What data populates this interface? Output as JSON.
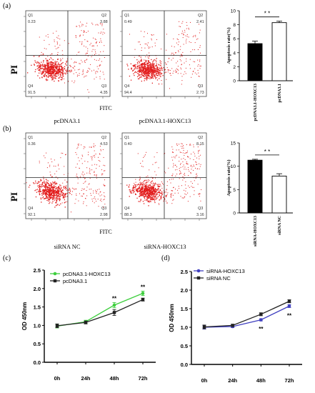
{
  "panel_labels": {
    "a": "(a)",
    "b": "(b)",
    "c": "(c)",
    "d": "(d)"
  },
  "flow": {
    "y_label": "PI",
    "x_label_a": "FITC",
    "x_label_b": "FITC",
    "plots": [
      {
        "title": "pcDNA3.1",
        "q1": "0.23",
        "q2": "3.88",
        "q3": "4.35",
        "q4": "91.5",
        "q1_label": "Q1",
        "q2_label": "Q2",
        "q3_label": "Q3",
        "q4_label": "Q4"
      },
      {
        "title": "pcDNA3.1-HOXC13",
        "q1": "0.49",
        "q2": "2.41",
        "q3": "2.73",
        "q4": "94.4",
        "q1_label": "Q1",
        "q2_label": "Q2",
        "q3_label": "Q3",
        "q4_label": "Q4"
      },
      {
        "title": "siRNA NC",
        "q1": "0.36",
        "q2": "4.53",
        "q3": "2.98",
        "q4": "92.1",
        "q1_label": "Q1",
        "q2_label": "Q2",
        "q3_label": "Q3",
        "q4_label": "Q4"
      },
      {
        "title": "siRNA-HOXC13",
        "q1": "0.40",
        "q2": "8.15",
        "q3": "3.16",
        "q4": "88.3",
        "q1_label": "Q1",
        "q2_label": "Q2",
        "q3_label": "Q3",
        "q4_label": "Q4"
      }
    ]
  },
  "chart_data": [
    {
      "type": "bar",
      "id": "apoptosis-a",
      "title": "",
      "ylabel": "Apoptosis rate(%)",
      "ylim": [
        0,
        10
      ],
      "yticks": [
        "0",
        "2",
        "4",
        "6",
        "8",
        "10"
      ],
      "categories": [
        "pcDNA3.1-HOXC13",
        "pcDNA3.1"
      ],
      "values": [
        5.3,
        8.3
      ],
      "errors": [
        0.35,
        0.2
      ],
      "fills": [
        "#000000",
        "#ffffff"
      ],
      "significance": "* *"
    },
    {
      "type": "bar",
      "id": "apoptosis-b",
      "title": "",
      "ylabel": "Apoptosis rate(%)",
      "ylim": [
        0,
        15
      ],
      "yticks": [
        "0",
        "5",
        "10",
        "15"
      ],
      "categories": [
        "siRNA-HOXC13",
        "siRNA NC"
      ],
      "values": [
        11.3,
        7.9
      ],
      "errors": [
        0.2,
        0.5
      ],
      "fills": [
        "#000000",
        "#ffffff"
      ],
      "significance": "* *"
    },
    {
      "type": "line",
      "id": "od-c",
      "title": "",
      "ylabel": "OD 450nm",
      "xlabel": "",
      "ylim": [
        0.0,
        2.5
      ],
      "yticks": [
        "0.0",
        "0.5",
        "1.0",
        "1.5",
        "2.0",
        "2.5"
      ],
      "categories": [
        "0h",
        "24h",
        "48h",
        "72h"
      ],
      "series": [
        {
          "name": "pcDNA3.1-HOXC13",
          "color": "#3ecf3e",
          "marker": "circle",
          "values": [
            0.98,
            1.1,
            1.55,
            1.87
          ],
          "errors": [
            0.05,
            0.04,
            0.07,
            0.06
          ]
        },
        {
          "name": "pcDNA3.1",
          "color": "#222222",
          "marker": "square",
          "values": [
            0.99,
            1.08,
            1.35,
            1.7
          ],
          "errors": [
            0.05,
            0.04,
            0.08,
            0.04
          ]
        }
      ],
      "annotations": [
        {
          "x": "48h",
          "text": "**"
        },
        {
          "x": "72h",
          "text": "**"
        }
      ]
    },
    {
      "type": "line",
      "id": "od-d",
      "title": "",
      "ylabel": "OD 450nm",
      "xlabel": "",
      "ylim": [
        0.0,
        2.5
      ],
      "yticks": [
        "0.0",
        "0.5",
        "1.0",
        "1.5",
        "2.0",
        "2.5"
      ],
      "categories": [
        "0h",
        "24h",
        "48h",
        "72h"
      ],
      "series": [
        {
          "name": "siRNA-HOXC13",
          "color": "#4040c0",
          "marker": "circle",
          "values": [
            1.0,
            1.02,
            1.2,
            1.57
          ],
          "errors": [
            0.05,
            0.03,
            0.03,
            0.04
          ]
        },
        {
          "name": "siRNA NC",
          "color": "#222222",
          "marker": "square",
          "values": [
            1.01,
            1.05,
            1.35,
            1.7
          ],
          "errors": [
            0.05,
            0.03,
            0.04,
            0.04
          ]
        }
      ],
      "annotations": [
        {
          "x": "48h",
          "text": "**"
        },
        {
          "x": "72h",
          "text": "**"
        }
      ]
    }
  ]
}
